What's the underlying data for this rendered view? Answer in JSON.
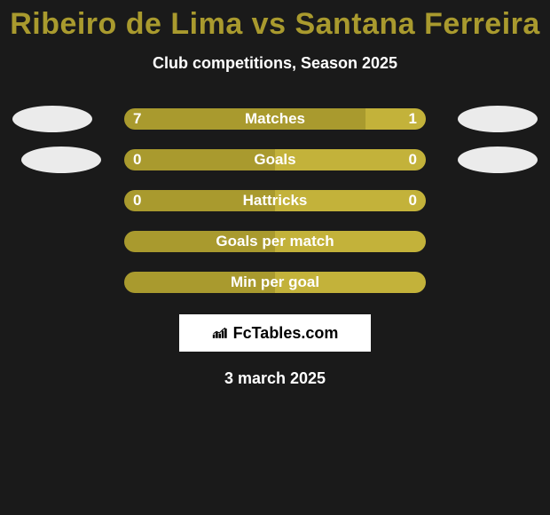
{
  "title_color": "#a99a2e",
  "title": "Ribeiro de Lima vs Santana Ferreira",
  "subtitle": "Club competitions, Season 2025",
  "label_fontsize": 17,
  "value_fontsize": 17,
  "bar_track_width": 340,
  "bar_track_height": 24,
  "border_radius": 12,
  "colors": {
    "left": "#a99a2e",
    "right": "#c3b23a",
    "bubble": "#ebebeb",
    "background": "#1a1a1a",
    "text": "#ffffff"
  },
  "rows": [
    {
      "label": "Matches",
      "left_val": "7",
      "right_val": "1",
      "left_pct": 80,
      "right_pct": 20,
      "show_values": true,
      "show_bubbles": true,
      "bubble_class_l": "bubble-l1",
      "bubble_class_r": "bubble-r1"
    },
    {
      "label": "Goals",
      "left_val": "0",
      "right_val": "0",
      "left_pct": 50,
      "right_pct": 50,
      "show_values": true,
      "show_bubbles": true,
      "bubble_class_l": "bubble-l2",
      "bubble_class_r": "bubble-r2"
    },
    {
      "label": "Hattricks",
      "left_val": "0",
      "right_val": "0",
      "left_pct": 50,
      "right_pct": 50,
      "show_values": true,
      "show_bubbles": false
    },
    {
      "label": "Goals per match",
      "left_val": "",
      "right_val": "",
      "left_pct": 50,
      "right_pct": 50,
      "show_values": false,
      "show_bubbles": false
    },
    {
      "label": "Min per goal",
      "left_val": "",
      "right_val": "",
      "left_pct": 50,
      "right_pct": 50,
      "show_values": false,
      "show_bubbles": false
    }
  ],
  "brand": "FcTables.com",
  "date": "3 march 2025"
}
